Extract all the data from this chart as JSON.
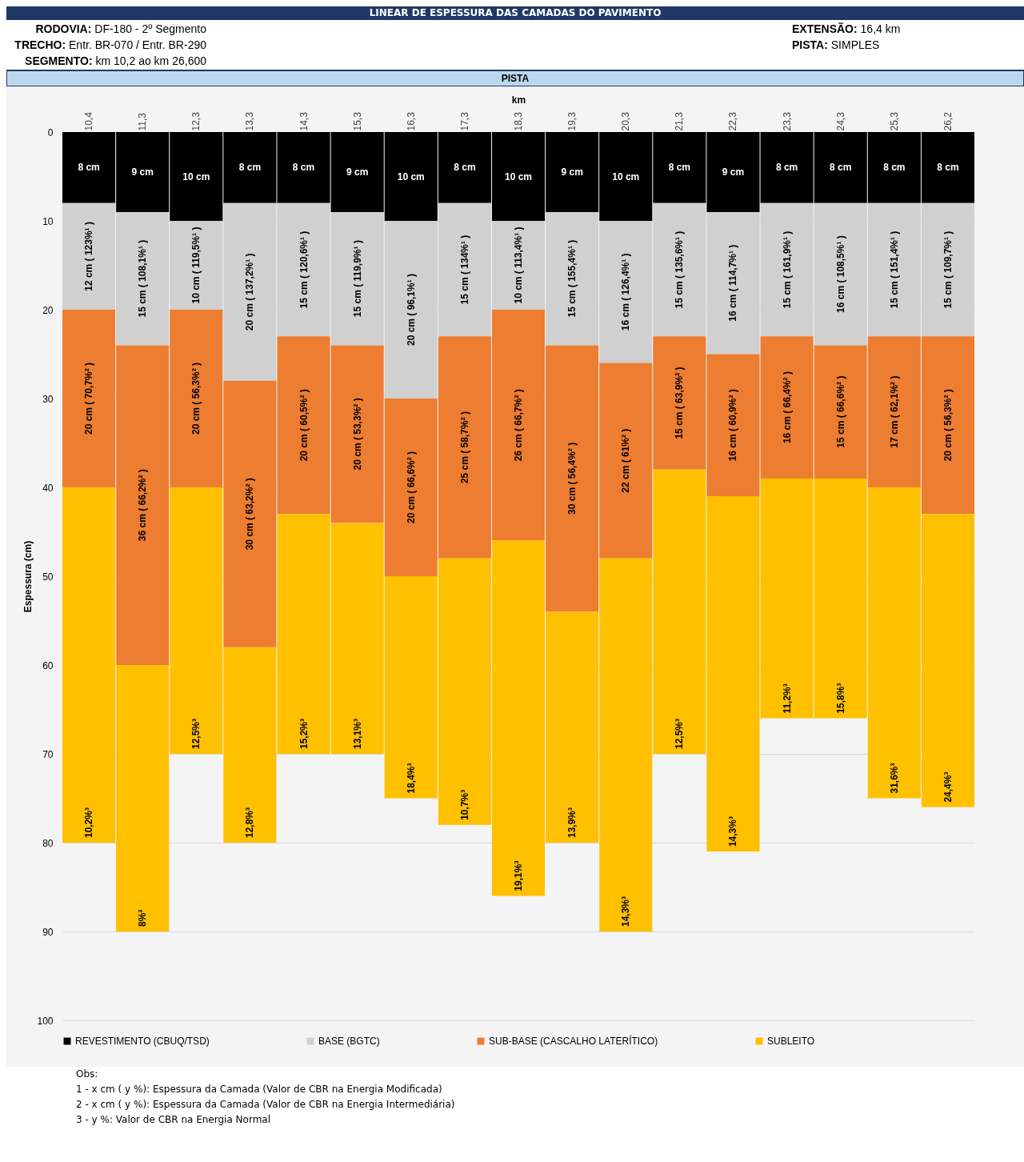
{
  "chart_data": {
    "type": "bar",
    "stacked": true,
    "title": "LINEAR DE ESPESSURA DAS CAMADAS DO PAVIMENTO",
    "subtitle": "PISTA",
    "xlabel": "km",
    "ylabel": "Espessura (cm)",
    "annotations": [
      "RODOVIA: DF-180 - 2º Segmento",
      "TRECHO: Entr. BR-070 / Entr. BR-290",
      "SEGMENTO: km 10,2 ao km 26,600",
      "EXTENSÃO: 16,4 km",
      "PISTA: SIMPLES",
      "Obs:",
      "1 - x cm ( y %): Espessura da Camada (Valor de CBR na Energia Modificada)",
      "2 - x cm ( y %): Espessura da Camada (Valor de CBR na Energia Intermediária)",
      "3 - y %: Valor de CBR na Energia Normal",
      {
        "text": "10,2%³",
        "x": "10,4",
        "y": 80
      },
      {
        "text": "8%³",
        "x": "11,3",
        "y": 90
      },
      {
        "text": "12,5%³",
        "x": "12,3",
        "y": 70
      },
      {
        "text": "12,8%³",
        "x": "13,3",
        "y": 80
      },
      {
        "text": "15,2%³",
        "x": "14,3",
        "y": 70
      },
      {
        "text": "13,1%³",
        "x": "15,3",
        "y": 70
      },
      {
        "text": "18,4%³",
        "x": "16,3",
        "y": 75
      },
      {
        "text": "10,7%³",
        "x": "17,3",
        "y": 78
      },
      {
        "text": "19,1%³",
        "x": "18,3",
        "y": 86
      },
      {
        "text": "13,9%³",
        "x": "19,3",
        "y": 80
      },
      {
        "text": "14,3%³",
        "x": "20,3",
        "y": 90
      },
      {
        "text": "12,5%³",
        "x": "21,3",
        "y": 70
      },
      {
        "text": "14,3%³",
        "x": "22,3",
        "y": 81
      },
      {
        "text": "11,2%³",
        "x": "23,3",
        "y": 66
      },
      {
        "text": "15,8%³",
        "x": "24,3",
        "y": 66
      },
      {
        "text": "31,6%³",
        "x": "25,3",
        "y": 75
      },
      {
        "text": "24,4%³",
        "x": "26,2",
        "y": 76
      }
    ],
    "categories": [
      "10,4",
      "11,3",
      "12,3",
      "13,3",
      "14,3",
      "15,3",
      "16,3",
      "17,3",
      "18,3",
      "19,3",
      "20,3",
      "21,3",
      "22,3",
      "23,3",
      "24,3",
      "25,3",
      "26,2"
    ],
    "series": [
      {
        "name": "REVESTIMENTO (CBUQ/TSD)",
        "color": "#000000",
        "values": [
          8,
          9,
          10,
          8,
          8,
          9,
          10,
          8,
          10,
          9,
          10,
          8,
          9,
          8,
          8,
          8,
          8
        ],
        "value_labels": [
          "8 cm",
          "9 cm",
          "10 cm",
          "8 cm",
          "8 cm",
          "9 cm",
          "10 cm",
          "8 cm",
          "10 cm",
          "9 cm",
          "10 cm",
          "8 cm",
          "9 cm",
          "8 cm",
          "8 cm",
          "8 cm",
          "8 cm"
        ]
      },
      {
        "name": "BASE (BGTC)",
        "color": "#d0d0d0",
        "values": [
          12,
          15,
          10,
          20,
          15,
          15,
          20,
          15,
          10,
          15,
          16,
          15,
          16,
          15,
          16,
          15,
          15
        ],
        "value_labels": [
          "12 cm ( 123%¹ )",
          "15 cm ( 108,1%¹ )",
          "10 cm ( 119,5%¹ )",
          "20 cm ( 137,2%¹ )",
          "15 cm ( 120,6%¹ )",
          "15 cm ( 119,9%¹ )",
          "20 cm ( 96,1%¹ )",
          "15 cm ( 134%¹ )",
          "10 cm ( 113,4%¹ )",
          "15 cm ( 155,4%¹ )",
          "16 cm ( 126,4%¹ )",
          "15 cm ( 135,6%¹ )",
          "16 cm ( 114,7%¹ )",
          "15 cm ( 161,9%¹ )",
          "16 cm ( 108,5%¹ )",
          "15 cm ( 151,4%¹ )",
          "15 cm ( 109,7%¹ )"
        ]
      },
      {
        "name": "SUB-BASE (CASCALHO LATERÍTICO)",
        "color": "#ed7d31",
        "values": [
          20,
          36,
          20,
          30,
          20,
          20,
          20,
          25,
          26,
          30,
          22,
          15,
          16,
          16,
          15,
          17,
          20
        ],
        "value_labels": [
          "20 cm ( 70,7%² )",
          "36 cm ( 66,2%² )",
          "20 cm ( 56,3%² )",
          "30 cm ( 63,2%² )",
          "20 cm ( 60,5%² )",
          "20 cm ( 53,3%² )",
          "20 cm ( 66,6%² )",
          "25 cm ( 58,7%² )",
          "26 cm ( 66,7%² )",
          "30 cm ( 56,4%² )",
          "22 cm ( 61%² )",
          "15 cm ( 63,9%² )",
          "16 cm ( 60,9%² )",
          "16 cm ( 66,4%² )",
          "15 cm ( 66,6%² )",
          "17 cm ( 62,1%² )",
          "20 cm ( 56,3%² )"
        ]
      },
      {
        "name": "SUBLEITO",
        "color": "#ffc000",
        "values": [
          40,
          30,
          30,
          22,
          27,
          26,
          25,
          30,
          40,
          26,
          42,
          32,
          40,
          27,
          27,
          35,
          33
        ]
      }
    ],
    "ylim": [
      100,
      0
    ],
    "yticks": [
      0,
      10,
      20,
      30,
      40,
      50,
      60,
      70,
      80,
      90,
      100
    ],
    "grid": "y",
    "legend": "bottom"
  }
}
